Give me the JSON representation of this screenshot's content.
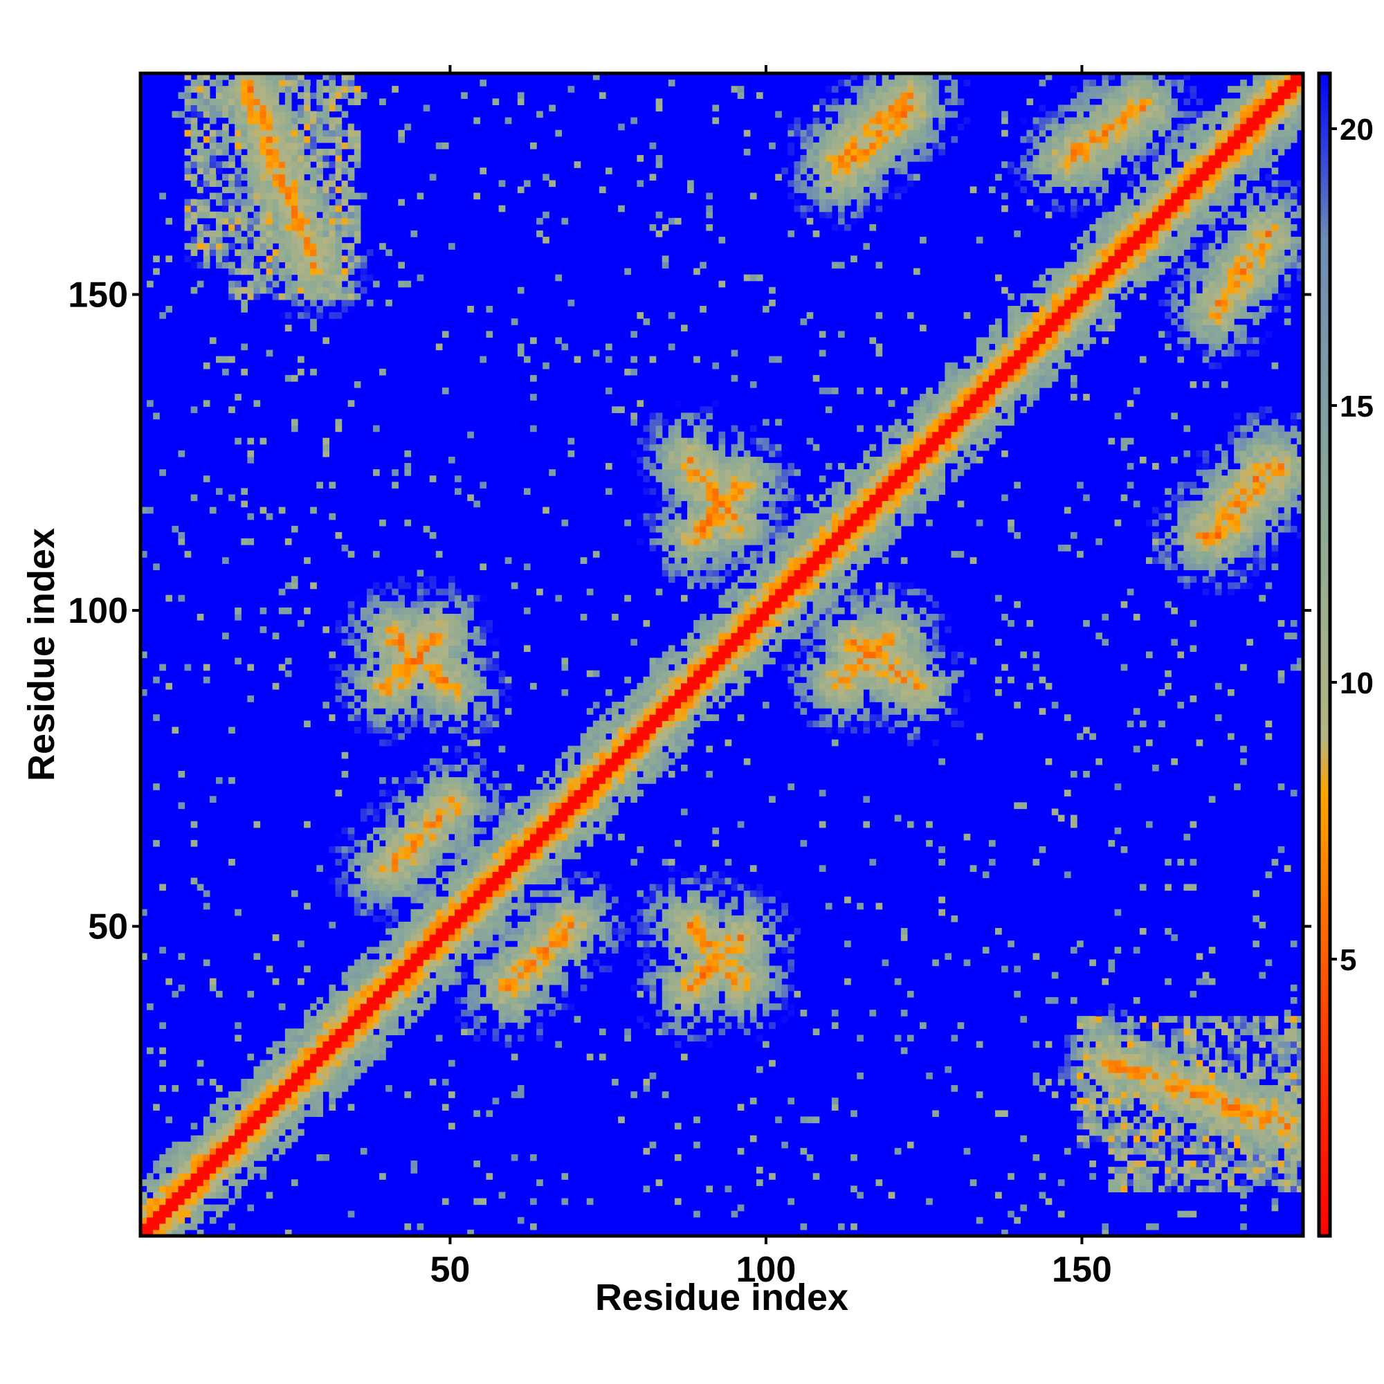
{
  "chart_data": {
    "type": "heatmap",
    "title": "",
    "xlabel": "Residue index",
    "ylabel": "Residue index",
    "xlim": [
      1,
      185
    ],
    "ylim": [
      1,
      185
    ],
    "xticks": [
      50,
      100,
      150
    ],
    "yticks": [
      50,
      100,
      150
    ],
    "n_residues": 185,
    "value_range": [
      0,
      21
    ],
    "grid": false,
    "colorbar": {
      "ticks": [
        5,
        10,
        15,
        20
      ],
      "range": [
        0,
        21
      ],
      "placement": "right",
      "stops": [
        {
          "value": 0,
          "color": "#ff0000"
        },
        {
          "value": 4,
          "color": "#ff4500"
        },
        {
          "value": 8,
          "color": "#ffa500"
        },
        {
          "value": 9,
          "color": "#b4b482"
        },
        {
          "value": 13,
          "color": "#8caa96"
        },
        {
          "value": 18,
          "color": "#6e8cb4"
        },
        {
          "value": 21,
          "color": "#0000ff"
        }
      ]
    },
    "colors": {
      "near": "#ff0000",
      "mid": "#ffa500",
      "halo": "#9eb48c",
      "far": "#0000ff"
    },
    "contact_bands": [
      {
        "axis_a": [
          1,
          40
        ],
        "axis_b": [
          1,
          40
        ],
        "kind": "diagonal"
      },
      {
        "axis_a": [
          40,
          100
        ],
        "axis_b": [
          40,
          100
        ],
        "kind": "diagonal"
      },
      {
        "axis_a": [
          100,
          185
        ],
        "axis_b": [
          100,
          185
        ],
        "kind": "diagonal"
      },
      {
        "axis_a": [
          18,
          28
        ],
        "axis_b": [
          155,
          183
        ],
        "kind": "anti"
      },
      {
        "axis_a": [
          41,
          50
        ],
        "axis_b": [
          88,
          96
        ],
        "kind": "anti"
      },
      {
        "axis_a": [
          59,
          69
        ],
        "axis_b": [
          40,
          50
        ],
        "kind": "parallel"
      },
      {
        "axis_a": [
          88,
          96
        ],
        "axis_b": [
          40,
          48
        ],
        "kind": "parallel"
      },
      {
        "axis_a": [
          89,
          96
        ],
        "axis_b": [
          112,
          120
        ],
        "kind": "parallel"
      },
      {
        "axis_a": [
          114,
          124
        ],
        "axis_b": [
          88,
          95
        ],
        "kind": "anti"
      },
      {
        "axis_a": [
          112,
          123
        ],
        "axis_b": [
          172,
          182
        ],
        "kind": "parallel"
      },
      {
        "axis_a": [
          149,
          160
        ],
        "axis_b": [
          172,
          180
        ],
        "kind": "parallel"
      },
      {
        "axis_a": [
          170,
          180
        ],
        "axis_b": [
          112,
          123
        ],
        "kind": "parallel"
      },
      {
        "axis_a": [
          172,
          180
        ],
        "axis_b": [
          148,
          160
        ],
        "kind": "parallel"
      },
      {
        "axis_a": [
          150,
          185
        ],
        "axis_b": [
          15,
          35
        ],
        "kind": "patch"
      },
      {
        "axis_a": [
          8,
          30
        ],
        "axis_b": [
          155,
          185
        ],
        "kind": "patch"
      }
    ]
  }
}
